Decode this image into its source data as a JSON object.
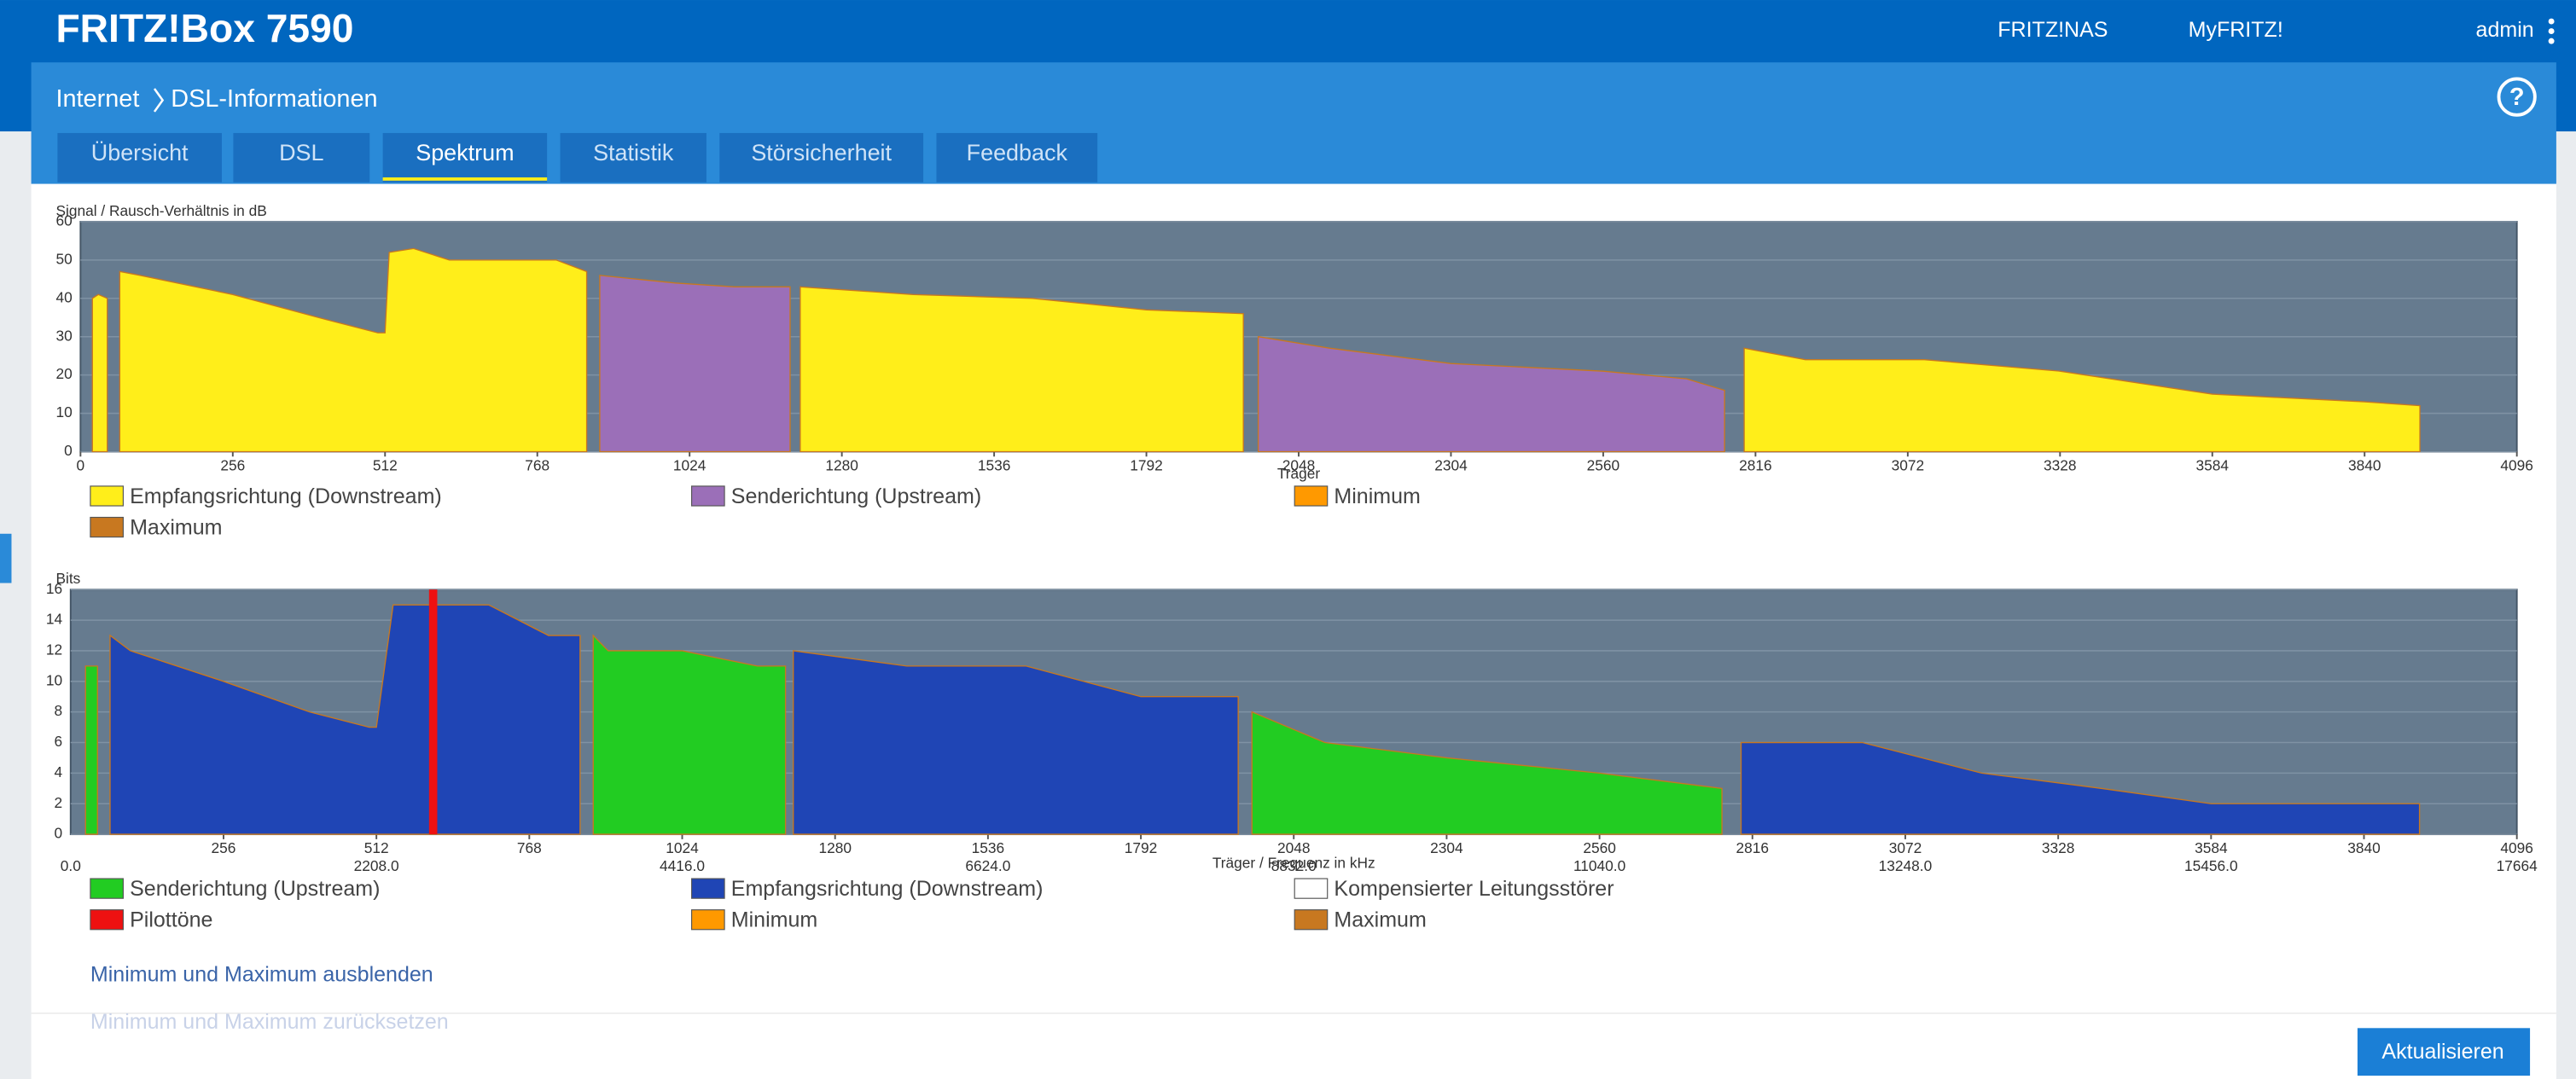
{
  "header": {
    "brand": "FRITZ!Box 7590",
    "nav": [
      "FRITZ!NAS",
      "MyFRITZ!"
    ],
    "user": "admin"
  },
  "breadcrumb": {
    "root": "Internet",
    "page": "DSL-Informationen"
  },
  "tabs": [
    "Übersicht",
    "DSL",
    "Spektrum",
    "Statistik",
    "Störsicherheit",
    "Feedback"
  ],
  "active_tab": 2,
  "chart_data": [
    {
      "type": "area",
      "ylabel": "Signal / Rausch-Verhältnis in dB",
      "xlabel": "Träger",
      "xlim": [
        0,
        4096
      ],
      "ylim": [
        0,
        60
      ],
      "xticks": [
        0,
        256,
        512,
        768,
        1024,
        1280,
        1536,
        1792,
        2048,
        2304,
        2560,
        2816,
        3072,
        3328,
        3584,
        3840,
        4096
      ],
      "yticks": [
        0,
        10,
        20,
        30,
        40,
        50,
        60
      ],
      "grid": true,
      "series": [
        {
          "name": "Empfangsrichtung (Downstream)",
          "color": "#ffee1a",
          "x": [
            20,
            30,
            45,
            null,
            66,
            100,
            256,
            400,
            500,
            512,
            519,
            560,
            620,
            700,
            800,
            851,
            null,
            1210,
            1400,
            1600,
            1792,
            1955,
            null,
            2797,
            2900,
            3100,
            3328,
            3584,
            3840,
            3933
          ],
          "values": [
            40,
            41,
            40,
            null,
            47,
            46,
            41,
            35,
            31,
            31,
            52,
            53,
            50,
            50,
            50,
            47,
            null,
            43,
            41,
            40,
            37,
            36,
            null,
            27,
            24,
            24,
            21,
            15,
            13,
            12
          ]
        },
        {
          "name": "Senderichtung (Upstream)",
          "color": "#9b6fb8",
          "x": [
            873,
            1000,
            1100,
            1193,
            null,
            1980,
            2100,
            2304,
            2560,
            2700,
            2764
          ],
          "values": [
            46,
            44,
            43,
            43,
            null,
            30,
            27,
            23,
            21,
            19,
            16
          ]
        },
        {
          "name": "Minimum",
          "color": "#ff9900"
        },
        {
          "name": "Maximum",
          "color": "#c87820"
        }
      ]
    },
    {
      "type": "area",
      "ylabel": "Bits",
      "xlabel": "Träger / Frequenz in kHz",
      "xlim": [
        0,
        4096
      ],
      "ylim": [
        0,
        16
      ],
      "xticks": [
        256,
        512,
        768,
        1024,
        1280,
        1536,
        1792,
        2048,
        2304,
        2560,
        2816,
        3072,
        3328,
        3584,
        3840,
        4096
      ],
      "x2lim": [
        0,
        17664
      ],
      "x2ticks": [
        {
          "value": 0,
          "label": "0.0"
        },
        {
          "value": 2208,
          "label": "2208.0"
        },
        {
          "value": 4416,
          "label": "4416.0"
        },
        {
          "value": 6624,
          "label": "6624.0"
        },
        {
          "value": 8832,
          "label": "8832.0"
        },
        {
          "value": 11040,
          "label": "11040.0"
        },
        {
          "value": 13248,
          "label": "13248.0"
        },
        {
          "value": 15456,
          "label": "15456.0"
        },
        17664
      ],
      "yticks": [
        0,
        2,
        4,
        6,
        8,
        10,
        12,
        14,
        16
      ],
      "grid": true,
      "series": [
        {
          "name": "Senderichtung (Upstream)",
          "color": "#22cc22",
          "x": [
            25,
            45,
            null,
            875,
            900,
            1024,
            1150,
            1197,
            null,
            1978,
            2100,
            2304,
            2560,
            2765
          ],
          "values": [
            11,
            11,
            null,
            13,
            12,
            12,
            11,
            11,
            null,
            8,
            6,
            5,
            4,
            3
          ]
        },
        {
          "name": "Empfangsrichtung (Downstream)",
          "color": "#1f45b5",
          "x": [
            66,
            100,
            256,
            400,
            500,
            512,
            540,
            600,
            700,
            800,
            853,
            null,
            1210,
            1400,
            1600,
            1792,
            1955,
            null,
            2797,
            3000,
            3200,
            3400,
            3584,
            3933
          ],
          "values": [
            13,
            12,
            10,
            8,
            7,
            7,
            15,
            15,
            15,
            13,
            13,
            null,
            12,
            11,
            11,
            9,
            9,
            null,
            6,
            6,
            4,
            3,
            2,
            2
          ]
        },
        {
          "name": "Kompensierter Leitungsstörer",
          "color": "#ffffff"
        },
        {
          "name": "Pilottöne",
          "color": "#ee1111",
          "type": "bar",
          "x": [
            607
          ],
          "values": [
            16
          ]
        },
        {
          "name": "Minimum",
          "color": "#ff9900"
        },
        {
          "name": "Maximum",
          "color": "#c87820"
        }
      ]
    }
  ],
  "links": [
    "Minimum und Maximum ausblenden",
    "Minimum und Maximum zurücksetzen"
  ],
  "button": "Aktualisieren"
}
